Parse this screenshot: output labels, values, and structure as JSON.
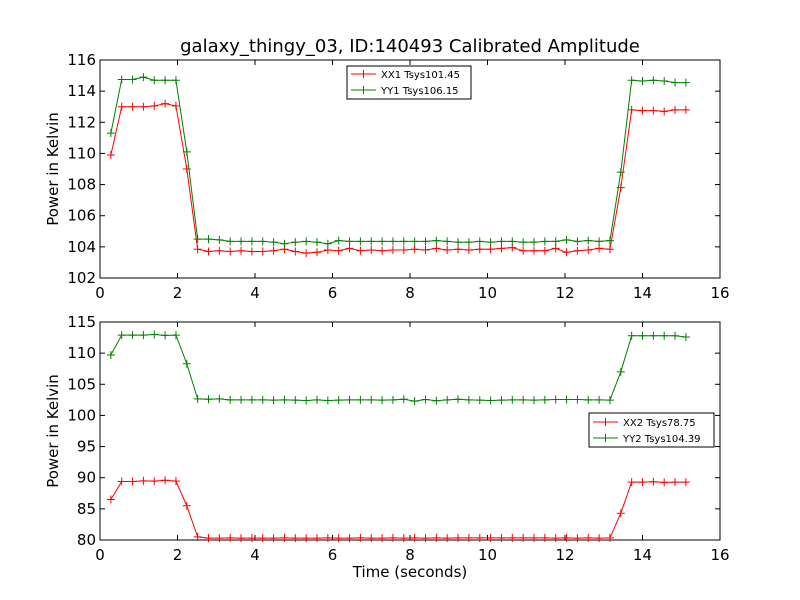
{
  "chart_data": [
    {
      "type": "line",
      "title": "galaxy_thingy_03, ID:140493 Calibrated Amplitude",
      "xlabel": "",
      "ylabel": "Power in Kelvin",
      "xlim": [
        0,
        16
      ],
      "ylim": [
        102,
        116
      ],
      "xticks": [
        "0",
        "2",
        "4",
        "6",
        "8",
        "10",
        "12",
        "14",
        "16"
      ],
      "yticks": [
        "102",
        "104",
        "106",
        "108",
        "110",
        "112",
        "114",
        "116"
      ],
      "x": [
        0.28,
        0.56,
        0.84,
        1.12,
        1.4,
        1.68,
        1.96,
        2.24,
        2.52,
        2.8,
        3.08,
        3.36,
        3.64,
        3.92,
        4.2,
        4.48,
        4.76,
        5.04,
        5.32,
        5.6,
        5.88,
        6.16,
        6.44,
        6.72,
        7.0,
        7.28,
        7.56,
        7.84,
        8.12,
        8.4,
        8.68,
        8.96,
        9.24,
        9.52,
        9.8,
        10.08,
        10.36,
        10.64,
        10.92,
        11.2,
        11.48,
        11.76,
        12.04,
        12.32,
        12.6,
        12.88,
        13.16,
        13.44,
        13.72,
        14.0,
        14.28,
        14.56,
        14.84,
        15.12
      ],
      "legend_position": "upper-center",
      "series": [
        {
          "name": "XX1 Tsys101.45",
          "color": "#ff0000",
          "values": [
            109.9,
            113.0,
            113.0,
            113.0,
            113.05,
            113.2,
            113.05,
            109.0,
            103.85,
            103.7,
            103.75,
            103.7,
            103.75,
            103.7,
            103.7,
            103.75,
            103.85,
            103.7,
            103.6,
            103.65,
            103.8,
            103.75,
            103.9,
            103.75,
            103.8,
            103.75,
            103.8,
            103.8,
            103.85,
            103.8,
            103.9,
            103.8,
            103.85,
            103.8,
            103.85,
            103.85,
            103.9,
            103.95,
            103.75,
            103.75,
            103.75,
            103.9,
            103.65,
            103.75,
            103.8,
            103.9,
            103.85,
            107.8,
            112.8,
            112.75,
            112.75,
            112.7,
            112.8,
            112.8
          ]
        },
        {
          "name": "YY1 Tsys106.15",
          "color": "#008000",
          "values": [
            111.3,
            114.75,
            114.75,
            114.9,
            114.7,
            114.7,
            114.7,
            110.1,
            104.5,
            104.5,
            104.45,
            104.35,
            104.35,
            104.35,
            104.35,
            104.3,
            104.2,
            104.3,
            104.35,
            104.3,
            104.2,
            104.4,
            104.35,
            104.35,
            104.35,
            104.35,
            104.35,
            104.35,
            104.35,
            104.35,
            104.4,
            104.35,
            104.3,
            104.3,
            104.35,
            104.3,
            104.35,
            104.35,
            104.3,
            104.3,
            104.35,
            104.35,
            104.45,
            104.35,
            104.4,
            104.35,
            104.4,
            108.8,
            114.7,
            114.65,
            114.7,
            114.65,
            114.55,
            114.55
          ]
        }
      ]
    },
    {
      "type": "line",
      "title": "",
      "xlabel": "Time (seconds)",
      "ylabel": "Power in Kelvin",
      "xlim": [
        0,
        16
      ],
      "ylim": [
        80,
        115
      ],
      "xticks": [
        "0",
        "2",
        "4",
        "6",
        "8",
        "10",
        "12",
        "14",
        "16"
      ],
      "yticks": [
        "80",
        "85",
        "90",
        "95",
        "100",
        "105",
        "110",
        "115"
      ],
      "x": [
        0.28,
        0.56,
        0.84,
        1.12,
        1.4,
        1.68,
        1.96,
        2.24,
        2.52,
        2.8,
        3.08,
        3.36,
        3.64,
        3.92,
        4.2,
        4.48,
        4.76,
        5.04,
        5.32,
        5.6,
        5.88,
        6.16,
        6.44,
        6.72,
        7.0,
        7.28,
        7.56,
        7.84,
        8.12,
        8.4,
        8.68,
        8.96,
        9.24,
        9.52,
        9.8,
        10.08,
        10.36,
        10.64,
        10.92,
        11.2,
        11.48,
        11.76,
        12.04,
        12.32,
        12.6,
        12.88,
        13.16,
        13.44,
        13.72,
        14.0,
        14.28,
        14.56,
        14.84,
        15.12
      ],
      "legend_position": "center-right",
      "series": [
        {
          "name": "XX2 Tsys78.75",
          "color": "#ff0000",
          "values": [
            86.5,
            89.4,
            89.4,
            89.5,
            89.45,
            89.6,
            89.45,
            85.5,
            80.5,
            80.3,
            80.3,
            80.35,
            80.3,
            80.3,
            80.3,
            80.3,
            80.35,
            80.3,
            80.3,
            80.3,
            80.35,
            80.3,
            80.3,
            80.35,
            80.3,
            80.3,
            80.35,
            80.3,
            80.35,
            80.3,
            80.35,
            80.3,
            80.35,
            80.35,
            80.35,
            80.35,
            80.35,
            80.35,
            80.35,
            80.35,
            80.35,
            80.3,
            80.35,
            80.3,
            80.35,
            80.3,
            80.35,
            84.3,
            89.3,
            89.3,
            89.35,
            89.25,
            89.3,
            89.3
          ]
        },
        {
          "name": "YY2 Tsys104.39",
          "color": "#008000",
          "values": [
            109.7,
            112.9,
            112.9,
            112.9,
            113.0,
            112.85,
            112.9,
            108.3,
            102.65,
            102.6,
            102.65,
            102.5,
            102.5,
            102.5,
            102.5,
            102.45,
            102.5,
            102.45,
            102.4,
            102.5,
            102.4,
            102.45,
            102.5,
            102.5,
            102.5,
            102.45,
            102.5,
            102.6,
            102.3,
            102.55,
            102.35,
            102.5,
            102.6,
            102.5,
            102.45,
            102.4,
            102.45,
            102.5,
            102.5,
            102.45,
            102.5,
            102.55,
            102.55,
            102.55,
            102.5,
            102.5,
            102.45,
            107.0,
            112.8,
            112.8,
            112.8,
            112.8,
            112.8,
            112.6
          ]
        }
      ]
    }
  ]
}
